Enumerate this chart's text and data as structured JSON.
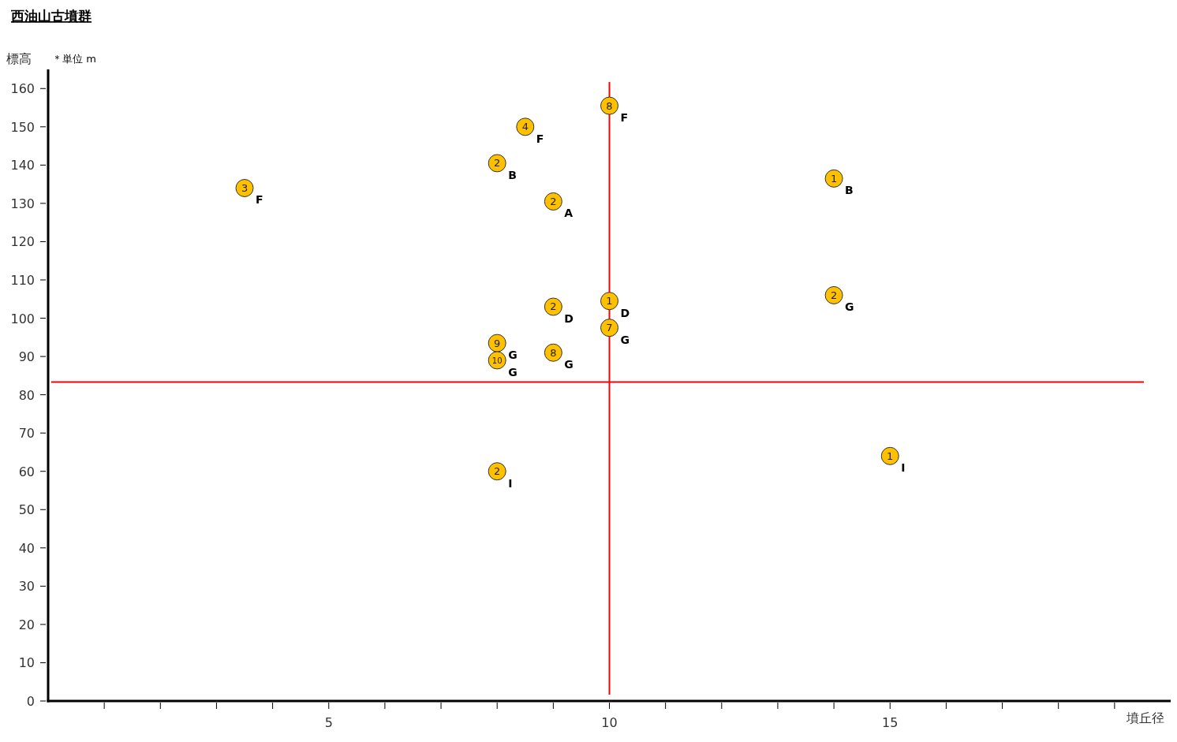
{
  "chart_data": {
    "type": "scatter",
    "title": "西油山古墳群",
    "xlabel": "墳丘径",
    "ylabel": "標高",
    "xlim": [
      0,
      20
    ],
    "ylim": [
      0,
      165
    ],
    "xticks": [
      {
        "value": 1,
        "label": null
      },
      {
        "value": 2,
        "label": null
      },
      {
        "value": 3,
        "label": null
      },
      {
        "value": 4,
        "label": null
      },
      5,
      {
        "value": 6,
        "label": null
      },
      {
        "value": 7,
        "label": null
      },
      {
        "value": 8,
        "label": null
      },
      {
        "value": 9,
        "label": null
      },
      10,
      {
        "value": 11,
        "label": null
      },
      {
        "value": 12,
        "label": null
      },
      {
        "value": 13,
        "label": null
      },
      {
        "value": 14,
        "label": null
      },
      15,
      {
        "value": 16,
        "label": null
      },
      {
        "value": 17,
        "label": null
      },
      {
        "value": 18,
        "label": null
      },
      {
        "value": 19,
        "label": null
      }
    ],
    "yticks": [
      0,
      10,
      20,
      30,
      40,
      50,
      60,
      70,
      80,
      90,
      100,
      110,
      120,
      130,
      140,
      150,
      160
    ],
    "marker": "circle",
    "series": [
      {
        "color": "#ffc000",
        "x": [
          3.5,
          8.5,
          8,
          10,
          9,
          14,
          9,
          10,
          14,
          10,
          8,
          8,
          9,
          8,
          15
        ],
        "values": [
          134,
          150,
          140.5,
          155.5,
          130.5,
          136.5,
          103,
          104.5,
          106,
          97.5,
          93.5,
          89,
          91,
          60,
          64
        ]
      }
    ],
    "ref_lines": [
      {
        "axis": "x",
        "value": 10,
        "color": "#ff0000"
      },
      {
        "axis": "y",
        "value": 83.3,
        "color": "#ff0000"
      }
    ],
    "annotations": [
      "＊単位 m",
      {
        "text": "3",
        "x": 3.5,
        "y": 134
      },
      {
        "text": "F",
        "x": 3.5,
        "y": 134
      },
      {
        "text": "4",
        "x": 8.5,
        "y": 150
      },
      {
        "text": "F",
        "x": 8.5,
        "y": 150
      },
      {
        "text": "2",
        "x": 8,
        "y": 140.5
      },
      {
        "text": "B",
        "x": 8,
        "y": 140.5
      },
      {
        "text": "8",
        "x": 10,
        "y": 155.5
      },
      {
        "text": "F",
        "x": 10,
        "y": 155.5
      },
      {
        "text": "2",
        "x": 9,
        "y": 130.5
      },
      {
        "text": "A",
        "x": 9,
        "y": 130.5
      },
      {
        "text": "1",
        "x": 14,
        "y": 136.5
      },
      {
        "text": "B",
        "x": 14,
        "y": 136.5
      },
      {
        "text": "2",
        "x": 9,
        "y": 103
      },
      {
        "text": "D",
        "x": 9,
        "y": 103
      },
      {
        "text": "1",
        "x": 10,
        "y": 104.5
      },
      {
        "text": "D",
        "x": 10,
        "y": 104.5
      },
      {
        "text": "2",
        "x": 14,
        "y": 106
      },
      {
        "text": "G",
        "x": 14,
        "y": 106
      },
      {
        "text": "7",
        "x": 10,
        "y": 97.5
      },
      {
        "text": "G",
        "x": 10,
        "y": 97.5
      },
      {
        "text": "9",
        "x": 8,
        "y": 93.5
      },
      {
        "text": "G",
        "x": 8,
        "y": 93.5
      },
      {
        "text": "10",
        "x": 8,
        "y": 89
      },
      {
        "text": "G",
        "x": 8,
        "y": 89
      },
      {
        "text": "8",
        "x": 9,
        "y": 91
      },
      {
        "text": "G",
        "x": 9,
        "y": 91
      },
      {
        "text": "2",
        "x": 8,
        "y": 60
      },
      {
        "text": "I",
        "x": 8,
        "y": 60
      },
      {
        "text": "1",
        "x": 15,
        "y": 64
      },
      {
        "text": "I",
        "x": 15,
        "y": 64
      }
    ]
  }
}
